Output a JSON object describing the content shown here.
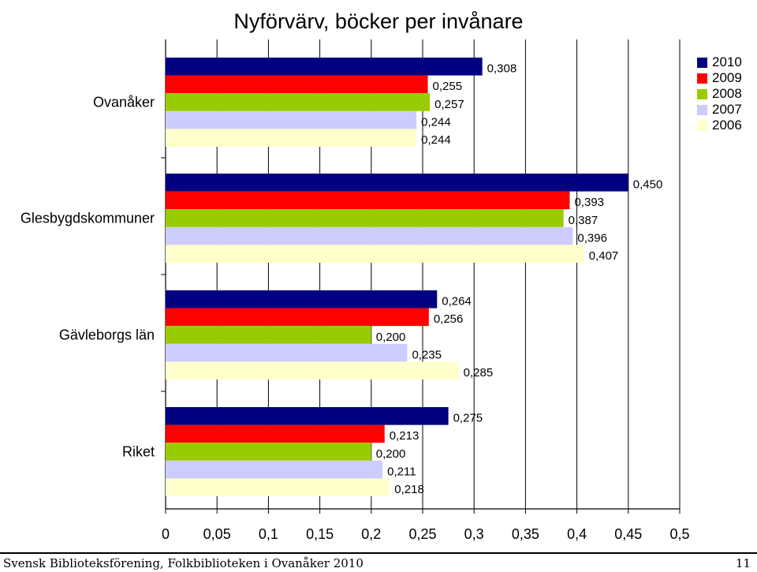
{
  "chart_data": {
    "type": "bar",
    "orientation": "horizontal",
    "title": "Nyförvärv, böcker per invånare",
    "categories": [
      "Ovanåker",
      "Glesbygdskommuner",
      "Gävleborgs län",
      "Riket"
    ],
    "series": [
      {
        "name": "2010",
        "color": "#000080",
        "values": [
          0.308,
          0.45,
          0.264,
          0.275
        ],
        "labels": [
          "0,308",
          "0,450",
          "0,264",
          "0,275"
        ]
      },
      {
        "name": "2009",
        "color": "#ff0000",
        "values": [
          0.255,
          0.393,
          0.256,
          0.213
        ],
        "labels": [
          "0,255",
          "0,393",
          "0,256",
          "0,213"
        ]
      },
      {
        "name": "2008",
        "color": "#99cc00",
        "values": [
          0.257,
          0.387,
          0.2,
          0.2
        ],
        "labels": [
          "0,257",
          "0,387",
          "0,200",
          "0,200"
        ]
      },
      {
        "name": "2007",
        "color": "#ccccff",
        "values": [
          0.244,
          0.396,
          0.235,
          0.211
        ],
        "labels": [
          "0,244",
          "0,396",
          "0,235",
          "0,211"
        ]
      },
      {
        "name": "2006",
        "color": "#ffffcc",
        "values": [
          0.244,
          0.407,
          0.285,
          0.218
        ],
        "labels": [
          "0,244",
          "0,407",
          "0,285",
          "0,218"
        ]
      }
    ],
    "xlim": [
      0,
      0.5
    ],
    "xticks": [
      0,
      0.05,
      0.1,
      0.15,
      0.2,
      0.25,
      0.3,
      0.35,
      0.4,
      0.45,
      0.5
    ],
    "xtick_labels": [
      "0",
      "0,05",
      "0,1",
      "0,15",
      "0,2",
      "0,25",
      "0,3",
      "0,35",
      "0,4",
      "0,45",
      "0,5"
    ],
    "grid": true,
    "legend_position": "top-right"
  },
  "footer": {
    "text": "Svensk Biblioteksförening, Folkbiblioteken i Ovanåker 2010",
    "page_number": "11"
  }
}
